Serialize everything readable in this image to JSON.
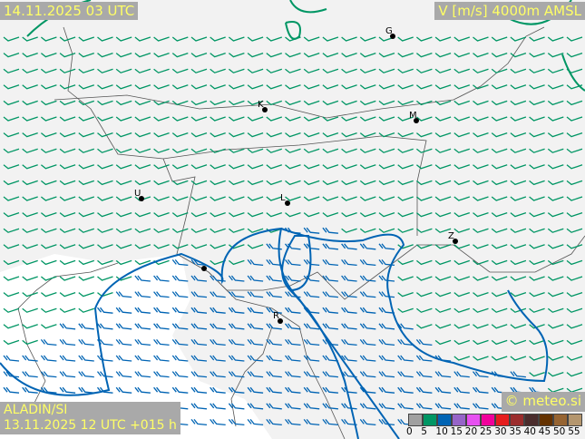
{
  "header": {
    "valid_time": "14.11.2025 03 UTC",
    "field": "V [m/s] 4000m AMSL"
  },
  "footer": {
    "model": "ALADIN/SI",
    "run": "13.11.2025 12 UTC +015 h",
    "credit": "© meteo.si"
  },
  "legend": {
    "unit": "m/s",
    "ticks": [
      "0",
      "5",
      "10",
      "15",
      "20",
      "25",
      "30",
      "35",
      "40",
      "45",
      "50",
      "55"
    ],
    "colors": [
      "#a0a0a0",
      "#009664",
      "#0064b4",
      "#9664c8",
      "#e650f0",
      "#f0009b",
      "#e61e1e",
      "#9b2d2d",
      "#4b2d2d",
      "#643200",
      "#966432",
      "#b4966e"
    ]
  },
  "cities": [
    {
      "label": "G"
    },
    {
      "label": "K"
    },
    {
      "label": "M"
    },
    {
      "label": "U"
    },
    {
      "label": "L"
    },
    {
      "label": "Z"
    },
    {
      "label": ""
    },
    {
      "label": "R"
    }
  ],
  "wind": {
    "direction": "westerly",
    "green_range": "5-10 m/s",
    "blue_range": "10-15 m/s"
  }
}
